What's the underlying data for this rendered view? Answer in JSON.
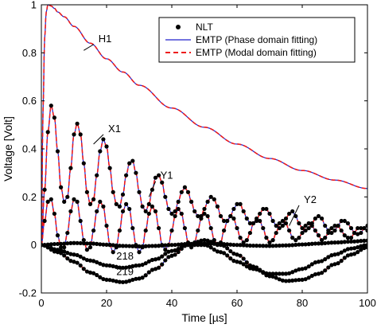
{
  "chart_data": {
    "type": "line",
    "xlabel": "Time [µs]",
    "ylabel": "Voltage [Volt]",
    "xlim": [
      0,
      100
    ],
    "ylim": [
      -0.2,
      1
    ],
    "x_ticks": [
      0,
      20,
      40,
      60,
      80,
      100
    ],
    "y_ticks": [
      -0.2,
      0,
      0.2,
      0.4,
      0.6,
      0.8,
      1
    ],
    "x_tick_labels": [
      "0",
      "20",
      "40",
      "60",
      "80",
      "100"
    ],
    "y_tick_labels": [
      "-0.2",
      "0",
      "0.2",
      "0.4",
      "0.6",
      "0.8",
      "1"
    ],
    "grid": false,
    "legend_position": "top-right",
    "legend": [
      {
        "label": "NLT",
        "style": "marker",
        "color": "#000000"
      },
      {
        "label": "EMTP (Phase domain fitting)",
        "style": "solid",
        "color": "#2222cc"
      },
      {
        "label": "EMTP (Modal domain fitting)",
        "style": "dashed",
        "color": "#ee1c1c"
      }
    ],
    "annotations": [
      {
        "text": "H1",
        "x": 17.5,
        "y": 0.845,
        "point_x": 13,
        "point_y": 0.81
      },
      {
        "text": "X1",
        "x": 20.5,
        "y": 0.47,
        "point_x": 16,
        "point_y": 0.42
      },
      {
        "text": "Y1",
        "x": 36.5,
        "y": 0.275,
        "point_x": 33,
        "point_y": 0.2
      },
      {
        "text": "Y2",
        "x": 80.5,
        "y": 0.175,
        "point_x": 76,
        "point_y": 0.08
      },
      {
        "text": "218",
        "x": 23,
        "y": -0.06
      },
      {
        "text": "219",
        "x": 23,
        "y": -0.125
      }
    ],
    "series": [
      {
        "name": "H1",
        "color": "#2222cc",
        "x": [
          0,
          0.5,
          1,
          1.5,
          2,
          3,
          4,
          5,
          7,
          10,
          15,
          20,
          25,
          30,
          40,
          50,
          60,
          70,
          80,
          90,
          100
        ],
        "y": [
          0,
          0.55,
          0.86,
          0.97,
          1.0,
          0.995,
          0.985,
          0.97,
          0.95,
          0.91,
          0.84,
          0.775,
          0.72,
          0.665,
          0.57,
          0.49,
          0.42,
          0.36,
          0.31,
          0.27,
          0.235
        ]
      },
      {
        "name": "X1",
        "color": "#2222cc",
        "x": [
          0,
          1,
          2,
          3,
          4,
          5,
          6,
          7,
          8,
          9,
          10,
          11,
          12,
          13,
          14,
          15,
          16,
          17,
          18,
          19,
          20,
          21,
          22,
          23,
          24,
          25,
          26,
          27,
          28,
          29,
          30,
          31,
          32,
          33,
          34,
          35,
          36,
          37,
          38,
          39,
          40,
          41,
          42,
          43,
          44,
          45,
          46,
          47,
          48,
          49,
          50,
          51,
          52,
          53,
          54,
          55,
          56,
          57,
          58,
          59,
          60,
          61,
          62,
          63,
          64,
          65,
          66,
          67,
          68,
          69,
          70,
          71,
          72,
          73,
          74,
          75,
          76,
          77,
          78,
          79,
          80,
          81,
          82,
          83,
          84,
          85,
          86,
          87,
          88,
          89,
          90,
          91,
          92,
          93,
          94,
          95,
          96,
          97,
          98,
          99,
          100
        ],
        "y": [
          0,
          0.23,
          0.47,
          0.58,
          0.53,
          0.39,
          0.24,
          0.18,
          0.2,
          0.32,
          0.46,
          0.505,
          0.46,
          0.34,
          0.22,
          0.17,
          0.19,
          0.29,
          0.39,
          0.44,
          0.41,
          0.32,
          0.22,
          0.17,
          0.16,
          0.21,
          0.29,
          0.34,
          0.35,
          0.3,
          0.22,
          0.16,
          0.14,
          0.17,
          0.23,
          0.28,
          0.29,
          0.26,
          0.2,
          0.15,
          0.13,
          0.14,
          0.18,
          0.22,
          0.24,
          0.22,
          0.18,
          0.14,
          0.12,
          0.12,
          0.15,
          0.18,
          0.2,
          0.19,
          0.16,
          0.12,
          0.1,
          0.1,
          0.12,
          0.15,
          0.17,
          0.17,
          0.14,
          0.11,
          0.09,
          0.09,
          0.1,
          0.13,
          0.15,
          0.15,
          0.13,
          0.1,
          0.08,
          0.07,
          0.08,
          0.11,
          0.13,
          0.14,
          0.12,
          0.09,
          0.07,
          0.06,
          0.07,
          0.09,
          0.11,
          0.12,
          0.11,
          0.08,
          0.06,
          0.05,
          0.06,
          0.08,
          0.1,
          0.1,
          0.09,
          0.07,
          0.05,
          0.045,
          0.05,
          0.07,
          0.08
        ]
      },
      {
        "name": "Y1",
        "color": "#2222cc",
        "x": [
          0,
          1,
          2,
          3,
          4,
          5,
          6,
          7,
          8,
          9,
          10,
          11,
          12,
          13,
          14,
          15,
          16,
          17,
          18,
          19,
          20,
          21,
          22,
          23,
          24,
          25,
          26,
          27,
          28,
          29,
          30,
          31,
          32,
          33,
          34,
          35,
          36,
          37,
          38,
          39,
          40,
          41,
          42,
          43,
          44,
          45,
          46,
          47,
          48,
          49,
          50,
          51,
          52,
          53,
          54,
          55,
          56,
          57,
          58,
          59,
          60,
          61,
          62,
          63,
          64,
          65,
          66,
          67,
          68,
          69,
          70,
          71,
          72,
          73,
          74,
          75,
          76,
          77,
          78,
          79,
          80,
          81,
          82,
          83,
          84,
          85,
          86,
          87,
          88,
          89,
          90,
          91,
          92,
          93,
          94,
          95,
          96,
          97,
          98,
          99,
          100
        ],
        "y": [
          0,
          0.1,
          0.18,
          0.19,
          0.13,
          0.04,
          -0.01,
          -0.01,
          0.05,
          0.14,
          0.19,
          0.18,
          0.1,
          0.02,
          -0.02,
          -0.01,
          0.06,
          0.14,
          0.18,
          0.16,
          0.08,
          0.0,
          -0.03,
          -0.01,
          0.06,
          0.14,
          0.17,
          0.15,
          0.07,
          0.0,
          -0.03,
          -0.01,
          0.06,
          0.13,
          0.16,
          0.14,
          0.07,
          0.0,
          -0.02,
          0.0,
          0.06,
          0.12,
          0.15,
          0.13,
          0.07,
          0.01,
          -0.01,
          0.01,
          0.06,
          0.11,
          0.13,
          0.12,
          0.07,
          0.02,
          0.0,
          0.01,
          0.06,
          0.1,
          0.12,
          0.11,
          0.07,
          0.03,
          0.01,
          0.02,
          0.05,
          0.09,
          0.11,
          0.1,
          0.07,
          0.03,
          0.01,
          0.02,
          0.05,
          0.09,
          0.1,
          0.09,
          0.06,
          0.03,
          0.02,
          0.03,
          0.05,
          0.08,
          0.09,
          0.08,
          0.06,
          0.04,
          0.02,
          0.03,
          0.05,
          0.07,
          0.08,
          0.08,
          0.06,
          0.04,
          0.03,
          0.03,
          0.05,
          0.07,
          0.07,
          0.07,
          0.06
        ]
      },
      {
        "name": "Y2",
        "color": "#2222cc",
        "x": [
          0,
          5,
          10,
          15,
          20,
          25,
          30,
          35,
          40,
          45,
          50,
          55,
          60,
          65,
          70,
          75,
          80,
          85,
          90,
          95,
          100
        ],
        "y": [
          0,
          0.004,
          0.008,
          0.006,
          0.001,
          -0.004,
          -0.006,
          -0.004,
          0.0,
          0.004,
          0.006,
          0.004,
          0.0,
          -0.003,
          -0.004,
          -0.002,
          0.002,
          0.006,
          0.01,
          0.014,
          0.018
        ]
      },
      {
        "name": "218",
        "color": "#2222cc",
        "x": [
          0,
          5,
          10,
          15,
          20,
          25,
          30,
          35,
          40,
          45,
          50,
          55,
          60,
          65,
          70,
          75,
          80,
          85,
          90,
          95,
          100
        ],
        "y": [
          0,
          -0.02,
          -0.04,
          -0.065,
          -0.085,
          -0.095,
          -0.085,
          -0.06,
          -0.025,
          0.0,
          0.0,
          -0.03,
          -0.07,
          -0.1,
          -0.12,
          -0.12,
          -0.1,
          -0.07,
          -0.04,
          -0.015,
          0.0
        ]
      },
      {
        "name": "219",
        "color": "#2222cc",
        "x": [
          0,
          5,
          10,
          15,
          20,
          25,
          30,
          35,
          40,
          45,
          50,
          55,
          60,
          65,
          70,
          75,
          80,
          85,
          90,
          95,
          100
        ],
        "y": [
          0,
          -0.03,
          -0.07,
          -0.115,
          -0.145,
          -0.155,
          -0.14,
          -0.1,
          -0.045,
          0.0,
          0.02,
          0.0,
          -0.04,
          -0.09,
          -0.13,
          -0.15,
          -0.145,
          -0.12,
          -0.08,
          -0.04,
          -0.01
        ]
      }
    ]
  }
}
